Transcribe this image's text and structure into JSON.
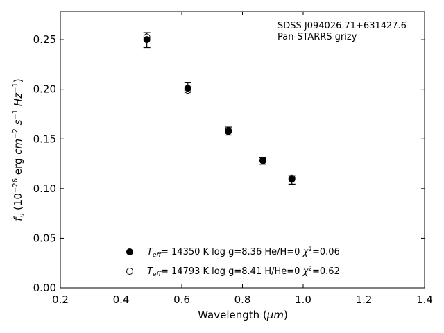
{
  "chart_data": {
    "type": "scatter",
    "xlabel": "Wavelength (μm)",
    "ylabel": "f_ν (10^−26 erg cm^−2 s^−1 Hz^−1)",
    "xlim": [
      0.2,
      1.4
    ],
    "ylim": [
      0.0,
      0.278
    ],
    "x_ticks": [
      "0.2",
      "0.4",
      "0.6",
      "0.8",
      "1.0",
      "1.2",
      "1.4"
    ],
    "y_ticks": [
      "0.00",
      "0.05",
      "0.10",
      "0.15",
      "0.20",
      "0.25"
    ],
    "grid": false,
    "legend_position": "bottom-center",
    "annotation": {
      "line1": "SDSS J094026.71+631427.6",
      "line2": "Pan-STARRS grizy"
    },
    "observed": {
      "x": [
        0.4849,
        0.6201,
        0.7535,
        0.8674,
        0.9628
      ],
      "y": [
        0.25,
        0.202,
        0.158,
        0.128,
        0.109
      ],
      "yerr_low": [
        0.008,
        0.005,
        0.004,
        0.0035,
        0.0045
      ],
      "yerr_high": [
        0.007,
        0.005,
        0.004,
        0.003,
        0.004
      ]
    },
    "series": [
      {
        "name": "Teff= 14350 K  log g=8.36  He/H=0  χ2=0.06",
        "marker": "filled-circle",
        "x": [
          0.4849,
          0.6201,
          0.7535,
          0.8674,
          0.9628
        ],
        "y": [
          0.25,
          0.201,
          0.1575,
          0.1285,
          0.1095
        ]
      },
      {
        "name": "Teff= 14793 K  log g=8.41  H/He=0  χ2=0.62",
        "marker": "open-circle",
        "x": [
          0.4849,
          0.6201,
          0.7535,
          0.8674,
          0.9628
        ],
        "y": [
          0.2525,
          0.199,
          0.1585,
          0.128,
          0.1105
        ]
      }
    ],
    "colors": {
      "marker": "#000000",
      "axes": "#000000",
      "background": "#ffffff"
    }
  }
}
